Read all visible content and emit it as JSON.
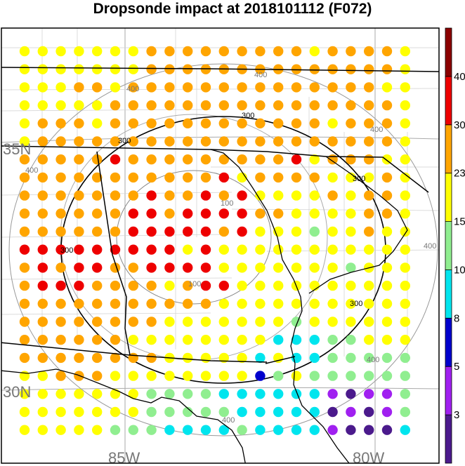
{
  "title": "Dropsonde impact at 2018101112 (F072)",
  "map": {
    "lat_labels": [
      "35N",
      "30N"
    ],
    "lon_labels": [
      "85W",
      "80W"
    ],
    "range_ring_labels": [
      "100",
      "300",
      "400"
    ],
    "range_ring_label_instances": [
      {
        "text": "100",
        "color": "gray"
      },
      {
        "text": "100",
        "color": "gray"
      },
      {
        "text": "300",
        "color": "black"
      },
      {
        "text": "300",
        "color": "black"
      },
      {
        "text": "300",
        "color": "black"
      },
      {
        "text": "300",
        "color": "black"
      },
      {
        "text": "300",
        "color": "black"
      },
      {
        "text": "400",
        "color": "gray"
      },
      {
        "text": "400",
        "color": "gray"
      },
      {
        "text": "400",
        "color": "gray"
      },
      {
        "text": "400",
        "color": "gray"
      },
      {
        "text": "400",
        "color": "gray"
      },
      {
        "text": "400",
        "color": "gray"
      },
      {
        "text": "400",
        "color": "gray"
      }
    ],
    "grid_values": [
      "2 2 2 2 2 2 2 3 3 3 3 3 3 3 3 3 2 3 3 3 3 2",
      "2 2 2 2 2 2 2 3 3 3 3 3 3 3 3 3 3 3 3 3 3 2",
      "2 2 2 3 3 2 3 3 3 3 3 3 3 3 3 3 3 3 3 3 2 2",
      "2 2 2 2 2 3 3 3 3 3 3 3 3 3 3 3 3 3 3 3 3 2",
      "2 3 3 3 2 3 3 3 3 3 3 3 3 3 3 3 3 2 3 3 3 2",
      "2 3 3 3 3 3 3 3 3 3 3 3 3 3 3 3 3 3 3 3 3 2",
      "3 3 3 3 3 4 3 3 3 3 3 3 3 3 3 4 2 3 3 3 2 2",
      "3 3 3 3 3 3 3 3 3 3 3 4 2 3 3 3 3 2 2 2 3 2",
      "3 3 3 3 3 3 3 4 3 3 4 3 4 2 2 2 2 3 2 3 3 2",
      "3 3 3 3 3 3 4 4 3 4 4 4 4 3 3 2 2 2 2 3 3 2",
      "3 3 3 3 3 3 4 4 4 4 4 3 4 2 2 2 1 2 2 3 2 2",
      "4 4 4 4 4 4 4 4 4 2 4 2 2 2 2 2 2 2 2 2 2 2",
      "3 4 3 4 4 3 3 4 4 4 4 2 2 2 2 2 2 2 1 2 2 2",
      "3 4 4 4 3 3 3 3 2 3 4 4 2 2 2 2 2 2 2 2 2 2",
      "3 3 3 3 3 3 3 3 3 3 3 2 2 2 2 2 2 2 2 2 2 2",
      "3 3 3 3 3 3 3 3 2 2 2 2 2 2 2 1 2 2 2 2 2 2",
      "3 3 3 3 3 3 2 2 2 2 2 2 2 2 -1 -1 -1 1 1 2 2 2",
      "3 3 3 3 3 3 3 3 2 2 2 2 2 -1 2 -1 -1 1 1 1 1 1",
      "2 2 3 3 3 2 2 2 2 2 2 2 2 -2 1 2 1 1 1 1 1 1",
      "2 2 2 2 2 2 2 1 1 1 1 0 0 -1 -1 -1 -1 -3 -4 -3 -3 1",
      "2 2 2 2 2 2 2 1 1 1 1 1 0 -1 -1 -1 -1 -4 -3 -4 -3 1",
      "2 2 2 2 2 1 1 1 0 0 0 0 1 -1 -1 -1 -1 -3 -4 -4 -4 0"
    ]
  },
  "colorbar": {
    "labels": [
      "3",
      "5",
      "8",
      "10",
      "15",
      "23",
      "30",
      "40"
    ],
    "colors": [
      "#4b1a8c",
      "#a020f0",
      "#0000cd",
      "#00e5ee",
      "#90ee90",
      "#ffff00",
      "#ffa500",
      "#ee0000",
      "#8b0000"
    ]
  },
  "chart_data": {
    "type": "heatmap",
    "title": "Dropsonde impact at 2018101112 (F072)",
    "latitude_ticks": [
      "35N",
      "30N"
    ],
    "longitude_ticks": [
      "85W",
      "80W"
    ],
    "colorbar_levels": [
      3,
      5,
      8,
      10,
      15,
      23,
      30,
      40
    ],
    "colorbar_colors": [
      "#4b1a8c",
      "#a020f0",
      "#0000cd",
      "#00e5ee",
      "#90ee90",
      "#ffff00",
      "#ffa500",
      "#ee0000",
      "#8b0000"
    ],
    "legend_placement": "right",
    "contour_labels": [
      "100",
      "300",
      "400"
    ],
    "class_index_by_cell": "map.grid_values"
  }
}
